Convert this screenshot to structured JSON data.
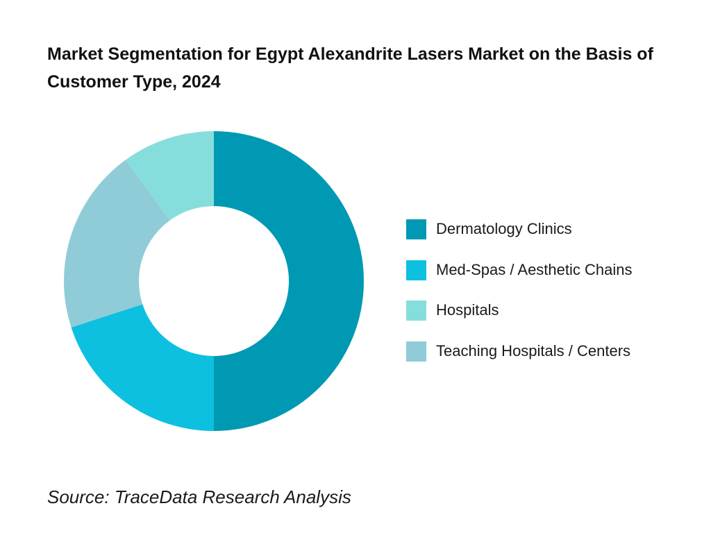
{
  "chart_data": {
    "type": "pie",
    "title": "Market Segmentation for Egypt Alexandrite Lasers Market on the Basis of Customer Type, 2024",
    "donut": true,
    "categories": [
      "Dermatology Clinics",
      "Med-Spas / Aesthetic Chains",
      "Teaching Hospitals / Centers",
      "Hospitals"
    ],
    "values": [
      50,
      20,
      20,
      10
    ],
    "unit": "%",
    "colors": [
      "#0099B3",
      "#0DC0E0",
      "#8FCCD8",
      "#86DEDC"
    ],
    "legend_position": "right",
    "legend": [
      {
        "label": "Dermatology Clinics",
        "color": "#0099B3"
      },
      {
        "label": "Med-Spas / Aesthetic Chains",
        "color": "#0DC0E0"
      },
      {
        "label": "Hospitals",
        "color": "#86DEDC"
      },
      {
        "label": "Teaching Hospitals / Centers",
        "color": "#8FCCD8"
      }
    ]
  },
  "source": "Source: TraceData Research Analysis"
}
